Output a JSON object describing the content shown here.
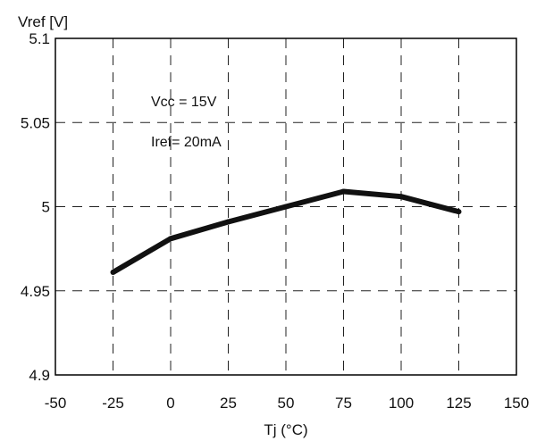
{
  "chart_data": {
    "type": "line",
    "title": "",
    "xlabel": "Tj (°C)",
    "ylabel": "Vref [V]",
    "xlim": [
      -50,
      150
    ],
    "ylim": [
      4.9,
      5.1
    ],
    "x_ticks": [
      -50,
      -25,
      0,
      25,
      50,
      75,
      100,
      125,
      150
    ],
    "x_tick_labels": [
      "-50",
      "-25",
      "0",
      "25",
      "50",
      "75",
      "100",
      "125",
      "150"
    ],
    "y_ticks": [
      4.9,
      4.95,
      5.0,
      5.05,
      5.1
    ],
    "y_tick_labels": [
      "4.9",
      "4.95",
      "5",
      "5.05",
      "5.1"
    ],
    "grid": "dashed",
    "series": [
      {
        "x": [
          -25,
          0,
          25,
          50,
          75,
          100,
          125
        ],
        "y": [
          4.961,
          4.981,
          4.991,
          5.0,
          5.009,
          5.006,
          4.997
        ]
      }
    ],
    "annotations": [
      "Vcc = 15V",
      "Iref= 20mA"
    ],
    "colors": {
      "line": "#111111",
      "grid": "#222222",
      "frame": "#000000"
    }
  }
}
